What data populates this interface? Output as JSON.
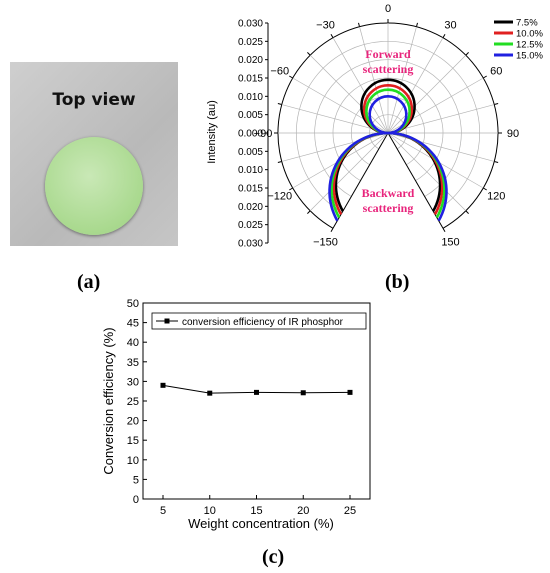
{
  "panel_a": {
    "title": "Top view",
    "label": "(a)"
  },
  "panel_b_label": "(b)",
  "panel_c_label": "(c)",
  "chart_data": [
    {
      "type": "polar",
      "ylabel": "Intensity (au)",
      "radial_ticks": [
        "0.030",
        "0.025",
        "0.020",
        "0.015",
        "0.010",
        "0.005",
        "0.000",
        "0.005",
        "0.010",
        "0.015",
        "0.020",
        "0.025",
        "0.030"
      ],
      "angle_ticks": [
        "0",
        "30",
        "60",
        "90",
        "120",
        "150",
        "−150",
        "−120",
        "−90",
        "−60",
        "−30"
      ],
      "angle_values": [
        0,
        30,
        60,
        90,
        120,
        150,
        -150,
        -120,
        -90,
        -60,
        -30
      ],
      "rmax": 0.03,
      "annotations": [
        "Forward scattering",
        "Backward scattering"
      ],
      "annotation_color": "#e8247c",
      "legend_position": "top-right",
      "series": [
        {
          "name": "7.5%",
          "color": "#000000",
          "forward_peak": 0.0145,
          "backward_peak": 0.0245
        },
        {
          "name": "10.0%",
          "color": "#e02020",
          "forward_peak": 0.013,
          "backward_peak": 0.0255
        },
        {
          "name": "12.5%",
          "color": "#22dd22",
          "forward_peak": 0.0118,
          "backward_peak": 0.0265
        },
        {
          "name": "15.0%",
          "color": "#2020e0",
          "forward_peak": 0.01,
          "backward_peak": 0.0275
        }
      ]
    },
    {
      "type": "line",
      "xlabel": "Weight concentration (%)",
      "ylabel": "Conversion efficiency (%)",
      "x": [
        5,
        10,
        15,
        20,
        25
      ],
      "xlim": [
        5,
        25
      ],
      "ylim": [
        0,
        50
      ],
      "yticks": [
        0,
        5,
        10,
        15,
        20,
        25,
        30,
        35,
        40,
        45,
        50
      ],
      "legend_position": "top-left",
      "series": [
        {
          "name": "conversion efficiency of IR phosphor",
          "values": [
            29.0,
            27.0,
            27.2,
            27.1,
            27.2
          ]
        }
      ]
    }
  ]
}
